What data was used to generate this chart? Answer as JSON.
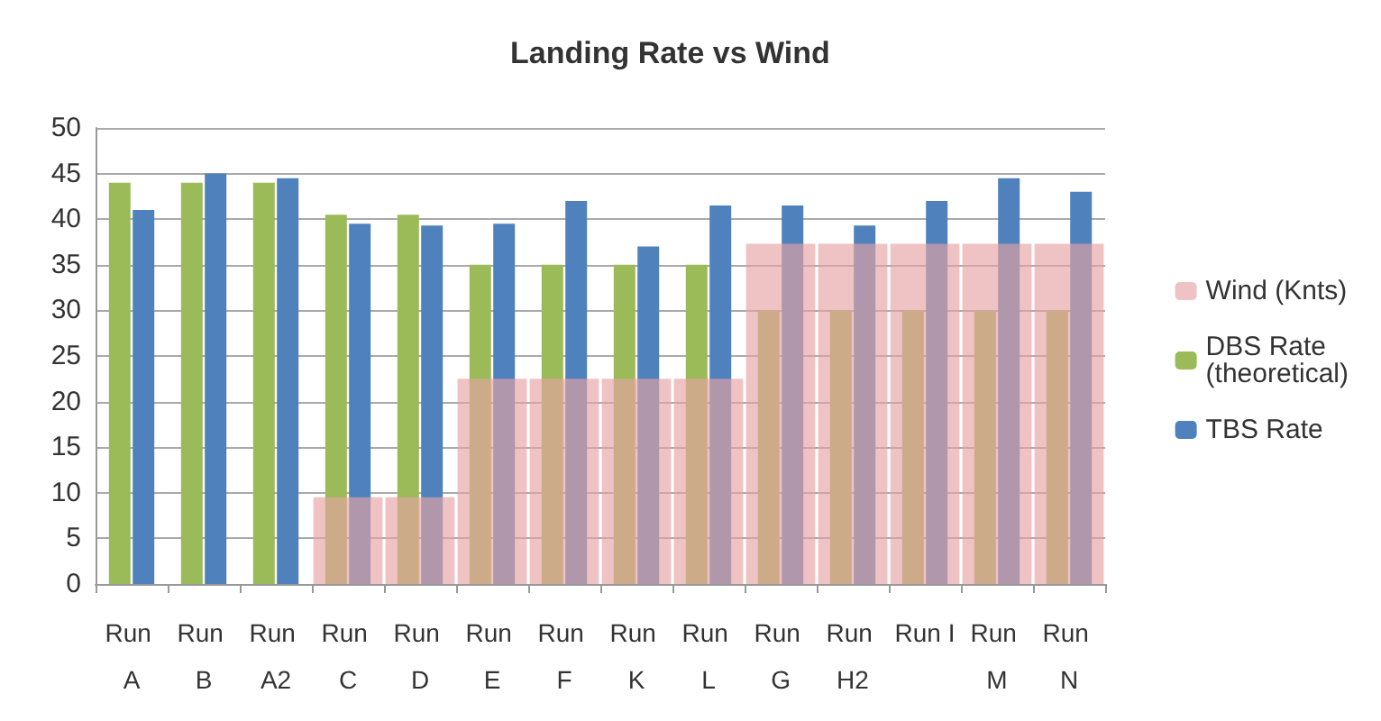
{
  "chart_data": {
    "type": "bar",
    "title": "Landing Rate vs Wind",
    "categories": [
      "Run A",
      "Run B",
      "Run A2",
      "Run C",
      "Run D",
      "Run E",
      "Run F",
      "Run K",
      "Run L",
      "Run G",
      "Run H2",
      "Run I",
      "Run M",
      "Run N"
    ],
    "series": [
      {
        "name": "Wind (Knts)",
        "type": "bar",
        "color": "#e6a3a3",
        "values": [
          0,
          0,
          0,
          9.5,
          9.5,
          22.5,
          22.5,
          22.5,
          22.5,
          37.3,
          37.3,
          37.3,
          37.3,
          37.3
        ]
      },
      {
        "name": "DBS Rate (theoretical)",
        "color": "#9bbb59",
        "values": [
          44,
          44,
          44,
          40.5,
          40.5,
          35,
          35,
          35,
          35,
          30,
          30,
          30,
          30,
          30
        ]
      },
      {
        "name": "TBS Rate",
        "color": "#4f81bd",
        "values": [
          41,
          45,
          44.5,
          39.5,
          39.3,
          39.5,
          42,
          37,
          41.5,
          41.5,
          39.3,
          42,
          44.5,
          43
        ]
      }
    ],
    "ylim": [
      0,
      50
    ],
    "yticks": [
      0,
      5,
      10,
      15,
      20,
      25,
      30,
      35,
      40,
      45,
      50
    ],
    "grid": "y",
    "legend": "right"
  }
}
